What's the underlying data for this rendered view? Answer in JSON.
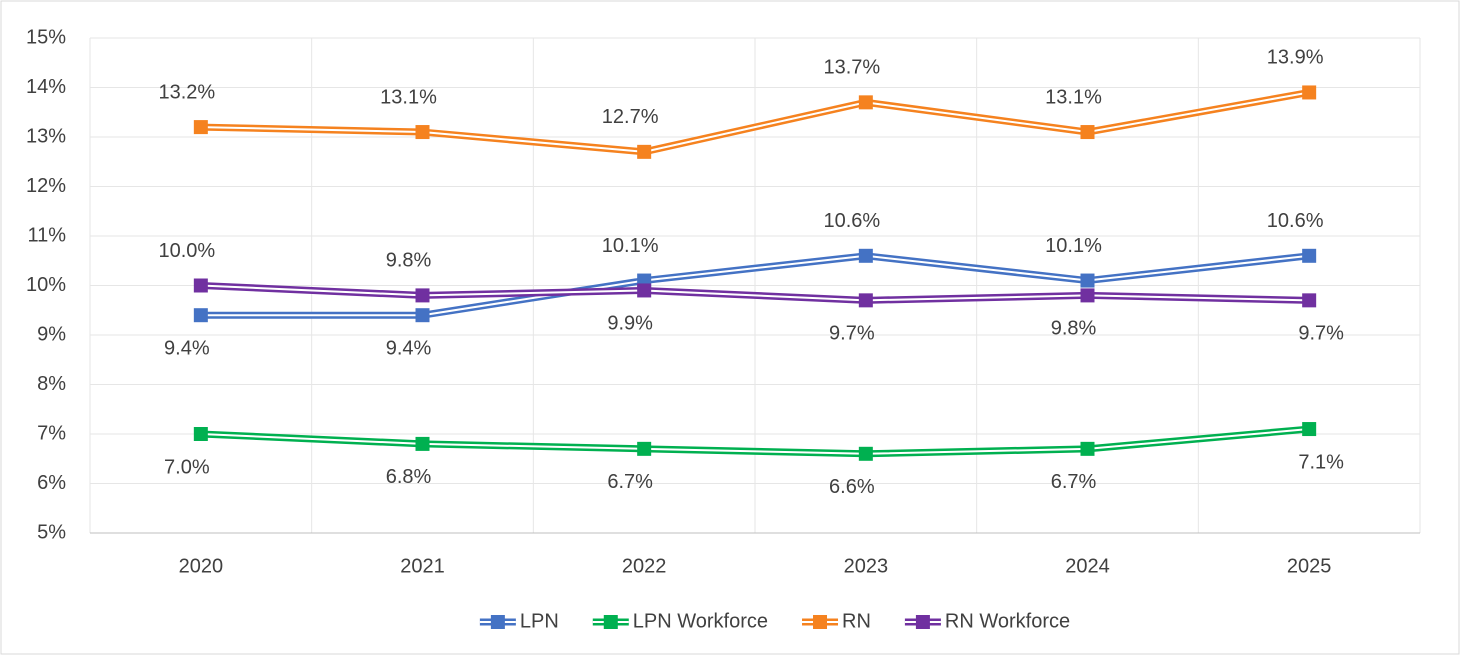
{
  "chart_data": {
    "type": "line",
    "categories": [
      "2020",
      "2021",
      "2022",
      "2023",
      "2024",
      "2025"
    ],
    "series": [
      {
        "name": "LPN",
        "color": "#4472c4",
        "values": [
          9.4,
          9.4,
          10.1,
          10.6,
          10.1,
          10.6
        ],
        "value_labels": [
          "9.4%",
          "9.4%",
          "10.1%",
          "10.6%",
          "10.1%",
          "10.6%"
        ]
      },
      {
        "name": "LPN Workforce",
        "color": "#00b050",
        "values": [
          7.0,
          6.8,
          6.7,
          6.6,
          6.7,
          7.1
        ],
        "value_labels": [
          "7.0%",
          "6.8%",
          "6.7%",
          "6.6%",
          "6.7%",
          "7.1%"
        ]
      },
      {
        "name": "RN",
        "color": "#f5821f",
        "values": [
          13.2,
          13.1,
          12.7,
          13.7,
          13.1,
          13.9
        ],
        "value_labels": [
          "13.2%",
          "13.1%",
          "12.7%",
          "13.7%",
          "13.1%",
          "13.9%"
        ]
      },
      {
        "name": "RN Workforce",
        "color": "#7030a0",
        "values": [
          10.0,
          9.8,
          9.9,
          9.7,
          9.8,
          9.7
        ],
        "value_labels": [
          "10.0%",
          "9.8%",
          "9.9%",
          "9.7%",
          "9.8%",
          "9.7%"
        ]
      }
    ],
    "ylim": [
      5,
      15
    ],
    "yticks": [
      {
        "value": 5,
        "label": "5%"
      },
      {
        "value": 6,
        "label": "6%"
      },
      {
        "value": 7,
        "label": "7%"
      },
      {
        "value": 8,
        "label": "8%"
      },
      {
        "value": 9,
        "label": "9%"
      },
      {
        "value": 10,
        "label": "10%"
      },
      {
        "value": 11,
        "label": "11%"
      },
      {
        "value": 12,
        "label": "12%"
      },
      {
        "value": 13,
        "label": "13%"
      },
      {
        "value": 14,
        "label": "14%"
      },
      {
        "value": 15,
        "label": "15%"
      }
    ],
    "grid": true,
    "legend": "bottom"
  }
}
